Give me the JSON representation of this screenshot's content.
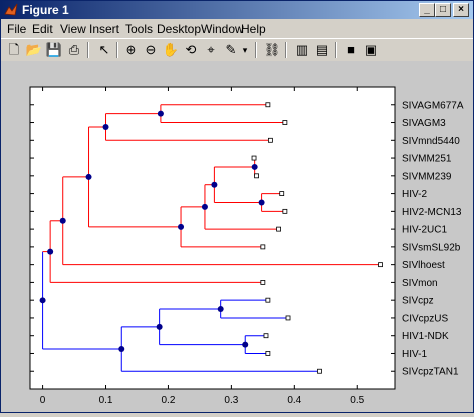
{
  "window": {
    "title": "Figure 1"
  },
  "menu": [
    "File",
    "Edit",
    "View",
    "Insert",
    "Tools",
    "Desktop",
    "Window",
    "Help"
  ],
  "chart_data": {
    "type": "dendrogram",
    "xlim": [
      -0.02,
      0.56
    ],
    "xticks": [
      0,
      0.1,
      0.2,
      0.3,
      0.4,
      0.5
    ],
    "xtick_labels": [
      "0",
      "0.1",
      "0.2",
      "0.3",
      "0.4",
      "0.5"
    ],
    "leaves": [
      "SIVAGM677A",
      "SIVAGM3",
      "SIVmnd5440",
      "SIVMM251",
      "SIVMM239",
      "HIV-2",
      "HIV2-MCN13",
      "HIV-2UC1",
      "SIVsmSL92b",
      "SIVlhoest",
      "SIVmon",
      "SIVcpz",
      "CIVcpzUS",
      "HIV1-NDK",
      "HIV-1",
      "SIVcpzTAN1"
    ],
    "leaf_x": [
      0.358,
      0.385,
      0.362,
      0.336,
      0.34,
      0.38,
      0.385,
      0.375,
      0.35,
      0.537,
      0.35,
      0.358,
      0.39,
      0.355,
      0.358,
      0.44
    ],
    "nodes": [
      {
        "id": "n1",
        "x": 0.188,
        "children": [
          "L0",
          "L1"
        ]
      },
      {
        "id": "n2",
        "x": 0.1,
        "children": [
          "n1",
          "L2"
        ]
      },
      {
        "id": "n3",
        "x": 0.337,
        "children": [
          "L3",
          "L4"
        ]
      },
      {
        "id": "n4",
        "x": 0.348,
        "children": [
          "L5",
          "L6"
        ]
      },
      {
        "id": "n5",
        "x": 0.273,
        "children": [
          "n3",
          "n4"
        ]
      },
      {
        "id": "n6",
        "x": 0.258,
        "children": [
          "n5",
          "L7"
        ]
      },
      {
        "id": "n7",
        "x": 0.22,
        "children": [
          "n6",
          "L8"
        ]
      },
      {
        "id": "n8",
        "x": 0.073,
        "children": [
          "n2",
          "n7"
        ]
      },
      {
        "id": "n9",
        "x": 0.032,
        "children": [
          "n8",
          "L9"
        ]
      },
      {
        "id": "n10",
        "x": 0.012,
        "children": [
          "n9",
          "L10"
        ]
      },
      {
        "id": "n11",
        "x": 0.283,
        "children": [
          "L11",
          "L12"
        ]
      },
      {
        "id": "n12",
        "x": 0.322,
        "children": [
          "L13",
          "L14"
        ]
      },
      {
        "id": "n13",
        "x": 0.186,
        "children": [
          "n11",
          "n12"
        ]
      },
      {
        "id": "n14",
        "x": 0.125,
        "children": [
          "n13",
          "L15"
        ]
      },
      {
        "id": "n15",
        "x": 0,
        "children": [
          "n10",
          "n14"
        ]
      }
    ],
    "colors": {
      "upper_clade": "#ff0000",
      "lower_clade": "#0000ff",
      "node_marker": "#00008b"
    },
    "grid": false
  }
}
